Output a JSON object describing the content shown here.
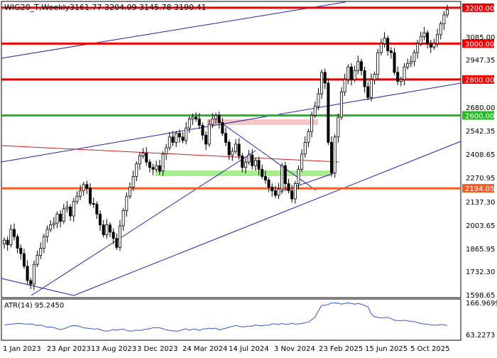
{
  "header": {
    "symbol": "WIG20_T,Weekly",
    "ohlc": "3161.77 3204.09 3145.78 3190.41"
  },
  "indicator": {
    "label": "ATR(14) 95.2450",
    "axis_labels": [
      "166.9699",
      "63.2273"
    ]
  },
  "price_axis": {
    "ticks": [
      "3085.00",
      "2947.35",
      "2680.00",
      "2542.35",
      "2408.65",
      "2270.95",
      "2137.30",
      "2003.65",
      "1865.95",
      "1732.30",
      "1598.65"
    ]
  },
  "levels": [
    {
      "value": 3200.0,
      "label": "3200.00",
      "color": "#ee0000"
    },
    {
      "value": 3000.0,
      "label": "3000.00",
      "color": "#ee0000"
    },
    {
      "value": 2800.0,
      "label": "2800.00",
      "color": "#ee0000"
    },
    {
      "value": 2600.0,
      "label": "2600.00",
      "color": "#22bb22"
    },
    {
      "value": 2194.05,
      "label": "2194.05",
      "color": "#ff5a1f"
    }
  ],
  "time_axis": {
    "labels": [
      "1 Jan 2023",
      "23 Apr 2023",
      "13 Aug 2023",
      "3 Dec 2023",
      "24 Mar 2024",
      "14 Jul 2024",
      "3 Nov 2024",
      "23 Feb 2025",
      "15 Jun 2025",
      "5 Oct 2025"
    ]
  },
  "colors": {
    "candle": "#000000",
    "trendline": "#2222aa",
    "regression": "#cc2222",
    "zone_red": "#f5c6c6",
    "zone_green": "#a8ee90",
    "atr_line": "#3355dd"
  },
  "chart_data": {
    "type": "candlestick",
    "timeframe": "Weekly",
    "x_range": [
      "2022-12-26",
      "2025-11-17"
    ],
    "y_range": [
      1585,
      3235
    ],
    "close": [
      1905,
      1880,
      1965,
      1925,
      1860,
      1830,
      1760,
      1680,
      1660,
      1770,
      1820,
      1860,
      1925,
      1965,
      1990,
      2000,
      2050,
      2010,
      2080,
      2090,
      2040,
      2120,
      2150,
      2180,
      2215,
      2195,
      2110,
      2105,
      2050,
      1990,
      1935,
      1990,
      1950,
      1915,
      1865,
      1985,
      2070,
      2150,
      2200,
      2260,
      2330,
      2375,
      2390,
      2340,
      2310,
      2300,
      2320,
      2290,
      2385,
      2420,
      2480,
      2450,
      2500,
      2480,
      2460,
      2530,
      2580,
      2590,
      2580,
      2545,
      2490,
      2440,
      2550,
      2580,
      2600,
      2560,
      2500,
      2450,
      2380,
      2400,
      2440,
      2375,
      2310,
      2340,
      2380,
      2320,
      2350,
      2300,
      2260,
      2240,
      2200,
      2180,
      2155,
      2190,
      2320,
      2220,
      2180,
      2135,
      2220,
      2300,
      2385,
      2450,
      2510,
      2600,
      2650,
      2720,
      2840,
      2780,
      2450,
      2280,
      2480,
      2590,
      2730,
      2800,
      2870,
      2800,
      2850,
      2900,
      2850,
      2760,
      2700,
      2800,
      2830,
      2950,
      3000,
      3030,
      2960,
      2950,
      2840,
      2790,
      2800,
      2870,
      2890,
      2900,
      2950,
      3000,
      3040,
      3060,
      3000,
      2980,
      3000,
      3050,
      3110,
      3160,
      3190
    ],
    "price_levels": [
      3200.0,
      3000.0,
      2800.0,
      2600.0,
      2194.05
    ],
    "atr": {
      "name": "ATR(14)",
      "last": 95.245,
      "axis_max": 166.9699,
      "axis_min": 63.2273,
      "values": [
        97,
        98,
        99,
        100,
        101,
        101,
        100,
        99,
        100,
        98,
        95,
        97,
        93,
        90,
        91,
        89,
        85,
        83,
        85,
        89,
        93,
        95,
        94,
        92,
        88,
        87,
        86,
        84,
        85,
        83,
        79,
        78,
        80,
        83,
        81,
        83,
        84,
        80,
        78,
        79,
        81,
        80,
        82,
        84,
        85,
        89,
        88,
        88,
        85,
        82,
        80,
        79,
        78,
        79,
        83,
        85,
        81,
        84,
        84,
        80,
        84,
        85,
        87,
        85,
        87,
        82,
        84,
        87,
        90,
        92,
        95,
        93,
        91,
        92,
        93,
        93,
        97,
        95,
        94,
        96,
        96,
        100,
        100,
        98,
        101,
        99,
        99,
        102,
        99,
        100,
        101,
        104,
        105,
        113,
        120,
        140,
        156,
        157,
        159,
        164,
        164,
        163,
        160,
        162,
        164,
        162,
        160,
        162,
        160,
        156,
        152,
        130,
        122,
        120,
        118,
        119,
        120,
        116,
        111,
        110,
        110,
        111,
        109,
        108,
        107,
        104,
        101,
        100,
        99,
        97,
        96,
        96,
        98,
        97,
        95
      ]
    }
  }
}
